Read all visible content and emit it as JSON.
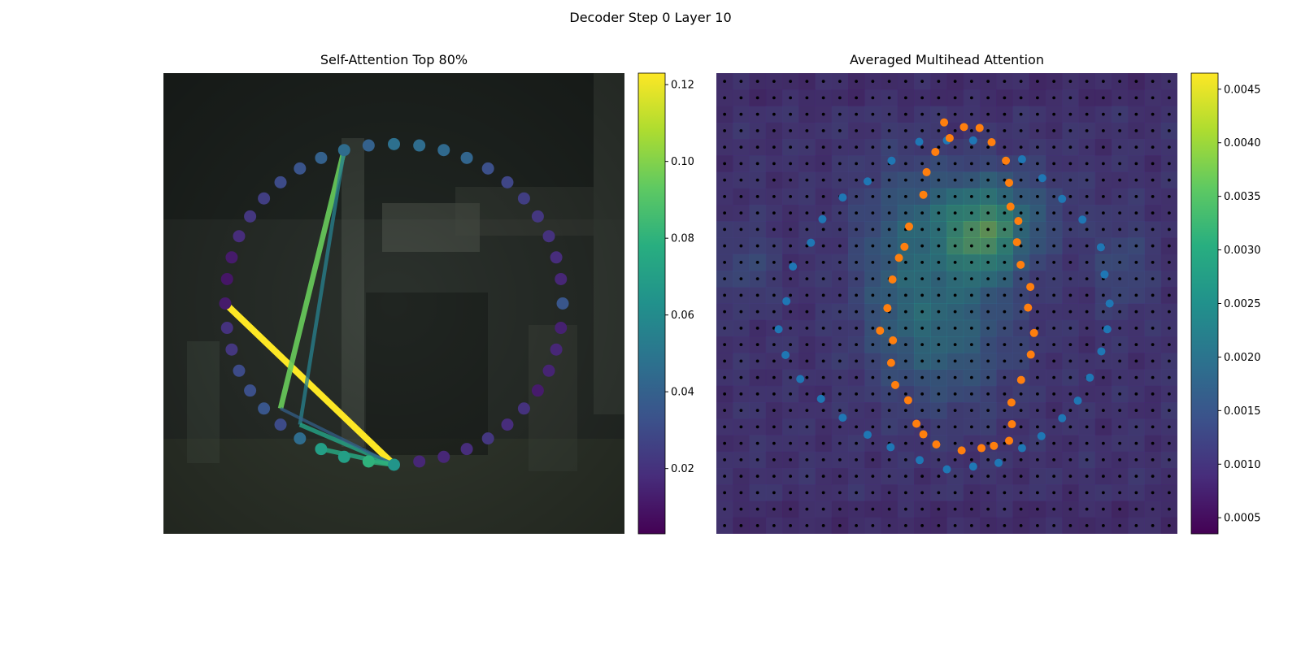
{
  "figure": {
    "suptitle": "Decoder Step 0 Layer 10"
  },
  "chart_data": [
    {
      "type": "scatter",
      "title": "Self-Attention Top 80%",
      "description_of_background": "blurred photograph",
      "colormap": "viridis",
      "colorbar": {
        "min": 0.003,
        "max": 0.123,
        "ticks": [
          "0.02",
          "0.04",
          "0.06",
          "0.08",
          "0.10",
          "0.12"
        ]
      },
      "xlim": [
        0,
        1
      ],
      "ylim": [
        0,
        1
      ],
      "axes_visible": false,
      "points": [
        [
          0.5,
          0.846,
          0.047
        ],
        [
          0.555,
          0.843,
          0.045
        ],
        [
          0.608,
          0.833,
          0.044
        ],
        [
          0.658,
          0.816,
          0.042
        ],
        [
          0.704,
          0.793,
          0.032
        ],
        [
          0.746,
          0.763,
          0.028
        ],
        [
          0.782,
          0.728,
          0.025
        ],
        [
          0.812,
          0.689,
          0.022
        ],
        [
          0.836,
          0.646,
          0.02
        ],
        [
          0.852,
          0.6,
          0.018
        ],
        [
          0.862,
          0.553,
          0.016
        ],
        [
          0.866,
          0.5,
          0.035
        ],
        [
          0.862,
          0.447,
          0.014
        ],
        [
          0.852,
          0.4,
          0.016
        ],
        [
          0.836,
          0.354,
          0.015
        ],
        [
          0.812,
          0.311,
          0.012
        ],
        [
          0.782,
          0.272,
          0.02
        ],
        [
          0.746,
          0.237,
          0.018
        ],
        [
          0.704,
          0.207,
          0.022
        ],
        [
          0.658,
          0.184,
          0.018
        ],
        [
          0.608,
          0.167,
          0.016
        ],
        [
          0.555,
          0.157,
          0.016
        ],
        [
          0.5,
          0.15,
          0.065
        ],
        [
          0.445,
          0.157,
          0.08
        ],
        [
          0.392,
          0.167,
          0.07
        ],
        [
          0.342,
          0.184,
          0.07
        ],
        [
          0.296,
          0.207,
          0.045
        ],
        [
          0.254,
          0.237,
          0.03
        ],
        [
          0.218,
          0.272,
          0.035
        ],
        [
          0.188,
          0.311,
          0.032
        ],
        [
          0.164,
          0.354,
          0.03
        ],
        [
          0.148,
          0.4,
          0.022
        ],
        [
          0.138,
          0.447,
          0.02
        ],
        [
          0.134,
          0.5,
          0.012
        ],
        [
          0.138,
          0.553,
          0.01
        ],
        [
          0.148,
          0.6,
          0.012
        ],
        [
          0.164,
          0.646,
          0.018
        ],
        [
          0.188,
          0.689,
          0.022
        ],
        [
          0.218,
          0.728,
          0.025
        ],
        [
          0.254,
          0.763,
          0.03
        ],
        [
          0.296,
          0.793,
          0.034
        ],
        [
          0.342,
          0.816,
          0.04
        ],
        [
          0.392,
          0.833,
          0.045
        ],
        [
          0.445,
          0.843,
          0.04
        ]
      ],
      "lines": [
        [
          0.5,
          0.15,
          0.134,
          0.5,
          0.123
        ],
        [
          0.254,
          0.272,
          0.392,
          0.833,
          0.095
        ],
        [
          0.296,
          0.237,
          0.392,
          0.833,
          0.055
        ],
        [
          0.296,
          0.237,
          0.5,
          0.15,
          0.072
        ],
        [
          0.254,
          0.272,
          0.5,
          0.15,
          0.04
        ],
        [
          0.342,
          0.184,
          0.5,
          0.15,
          0.075
        ],
        [
          0.445,
          0.157,
          0.5,
          0.15,
          0.08
        ]
      ]
    },
    {
      "type": "heatmap",
      "title": "Averaged Multihead Attention",
      "colormap": "viridis",
      "colorbar": {
        "min": 0.00035,
        "max": 0.00465,
        "ticks": [
          "0.0005",
          "0.0010",
          "0.0015",
          "0.0020",
          "0.0025",
          "0.0030",
          "0.0035",
          "0.0040",
          "0.0045"
        ]
      },
      "grid_size": 28,
      "hotspots": [
        [
          0.58,
          0.31,
          0.14,
          0.1,
          0.0017
        ],
        [
          0.58,
          0.38,
          0.08,
          0.09,
          0.0013
        ],
        [
          0.5,
          0.56,
          0.14,
          0.16,
          0.0012
        ],
        [
          0.4,
          0.4,
          0.1,
          0.2,
          0.0009
        ],
        [
          0.88,
          0.42,
          0.06,
          0.1,
          0.0006
        ],
        [
          0.07,
          0.42,
          0.05,
          0.08,
          0.0006
        ]
      ],
      "blue_points": [
        [
          0.44,
          0.149
        ],
        [
          0.557,
          0.146
        ],
        [
          0.663,
          0.187
        ],
        [
          0.707,
          0.228
        ],
        [
          0.75,
          0.273
        ],
        [
          0.794,
          0.318
        ],
        [
          0.834,
          0.378
        ],
        [
          0.842,
          0.437
        ],
        [
          0.853,
          0.5
        ],
        [
          0.848,
          0.556
        ],
        [
          0.835,
          0.604
        ],
        [
          0.81,
          0.661
        ],
        [
          0.784,
          0.711
        ],
        [
          0.75,
          0.749
        ],
        [
          0.705,
          0.788
        ],
        [
          0.663,
          0.814
        ],
        [
          0.612,
          0.846
        ],
        [
          0.557,
          0.854
        ],
        [
          0.5,
          0.86
        ],
        [
          0.441,
          0.84
        ],
        [
          0.378,
          0.812
        ],
        [
          0.328,
          0.785
        ],
        [
          0.274,
          0.748
        ],
        [
          0.227,
          0.707
        ],
        [
          0.182,
          0.664
        ],
        [
          0.15,
          0.612
        ],
        [
          0.135,
          0.556
        ],
        [
          0.152,
          0.495
        ],
        [
          0.166,
          0.42
        ],
        [
          0.205,
          0.368
        ],
        [
          0.23,
          0.317
        ],
        [
          0.274,
          0.27
        ],
        [
          0.328,
          0.235
        ],
        [
          0.38,
          0.19
        ],
        [
          0.5,
          0.146
        ]
      ],
      "orange_points": [
        [
          0.537,
          0.117
        ],
        [
          0.571,
          0.119
        ],
        [
          0.597,
          0.15
        ],
        [
          0.628,
          0.19
        ],
        [
          0.635,
          0.238
        ],
        [
          0.638,
          0.29
        ],
        [
          0.655,
          0.321
        ],
        [
          0.652,
          0.367
        ],
        [
          0.66,
          0.416
        ],
        [
          0.681,
          0.464
        ],
        [
          0.676,
          0.509
        ],
        [
          0.689,
          0.564
        ],
        [
          0.682,
          0.611
        ],
        [
          0.661,
          0.666
        ],
        [
          0.64,
          0.715
        ],
        [
          0.641,
          0.762
        ],
        [
          0.635,
          0.798
        ],
        [
          0.602,
          0.809
        ],
        [
          0.575,
          0.814
        ],
        [
          0.532,
          0.819
        ],
        [
          0.477,
          0.806
        ],
        [
          0.449,
          0.784
        ],
        [
          0.434,
          0.761
        ],
        [
          0.416,
          0.71
        ],
        [
          0.388,
          0.677
        ],
        [
          0.379,
          0.629
        ],
        [
          0.383,
          0.58
        ],
        [
          0.355,
          0.559
        ],
        [
          0.371,
          0.51
        ],
        [
          0.382,
          0.448
        ],
        [
          0.396,
          0.401
        ],
        [
          0.408,
          0.377
        ],
        [
          0.418,
          0.333
        ],
        [
          0.449,
          0.264
        ],
        [
          0.456,
          0.215
        ],
        [
          0.475,
          0.171
        ],
        [
          0.506,
          0.141
        ],
        [
          0.494,
          0.107
        ]
      ]
    }
  ]
}
